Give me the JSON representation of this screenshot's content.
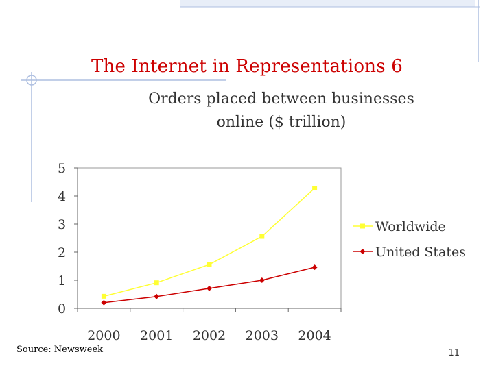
{
  "slide": {
    "title": "The Internet in Representations 6",
    "source": "Source: Newsweek",
    "page_number": "11"
  },
  "colors": {
    "title": "#cc0000",
    "worldwide": "#ffff33",
    "united_states": "#cc0000",
    "decoration": "#aebfe0"
  },
  "chart_data": {
    "type": "line",
    "title": "Orders placed between businesses online ($ trillion)",
    "title_lines": [
      "Orders placed between businesses",
      "online ($ trillion)"
    ],
    "x": [
      "2000",
      "2001",
      "2002",
      "2003",
      "2004"
    ],
    "ylim": [
      0,
      5
    ],
    "yticks": [
      "0",
      "1",
      "2",
      "3",
      "4",
      "5"
    ],
    "grid": false,
    "legend_position": "right",
    "series": [
      {
        "name": "Worldwide",
        "values": [
          0.43,
          0.91,
          1.56,
          2.56,
          4.28
        ]
      },
      {
        "name": "United States",
        "values": [
          0.2,
          0.42,
          0.71,
          1.0,
          1.46
        ]
      }
    ]
  }
}
